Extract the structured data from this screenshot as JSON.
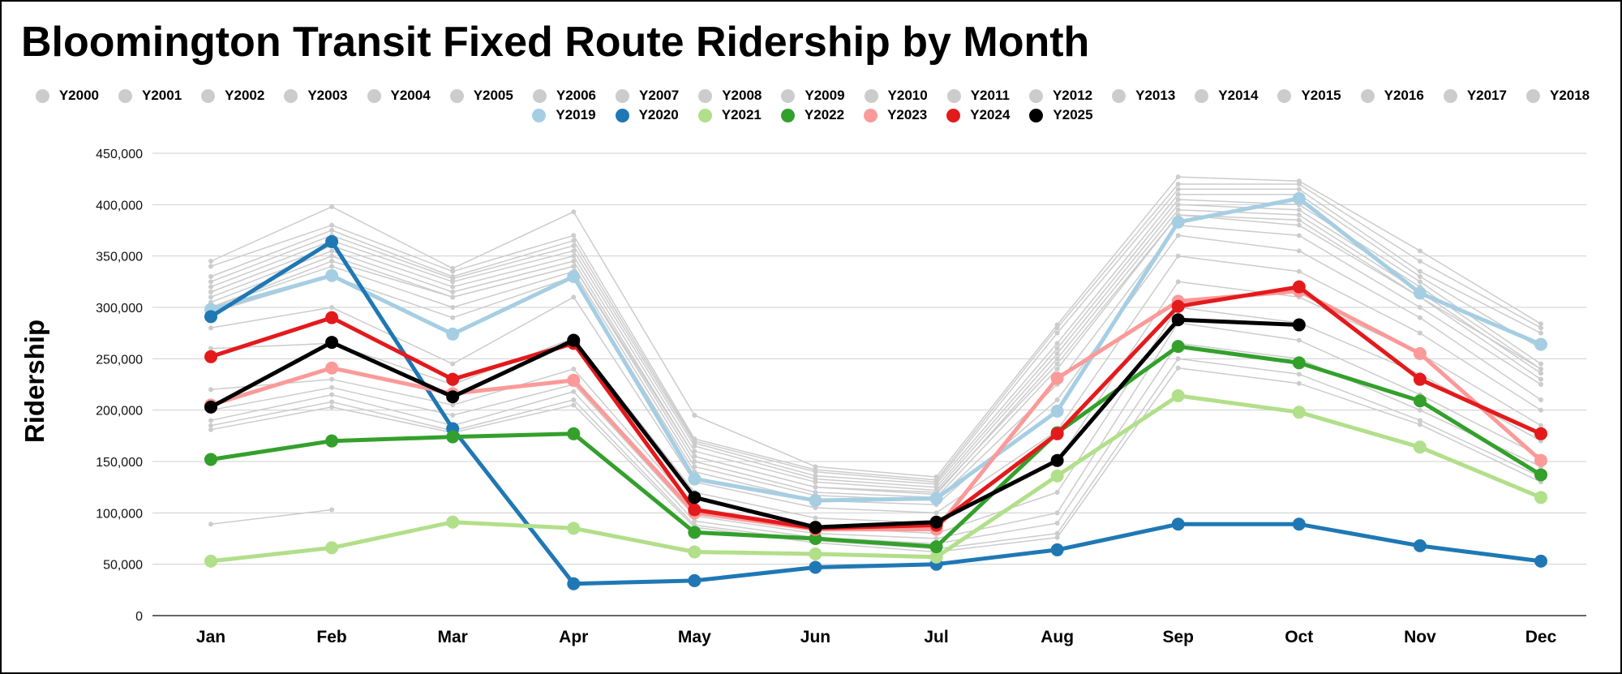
{
  "chart_data": {
    "type": "line",
    "title": "Bloomington Transit Fixed Route Ridership by Month",
    "xlabel": "",
    "ylabel": "Ridership",
    "categories": [
      "Jan",
      "Feb",
      "Mar",
      "Apr",
      "May",
      "Jun",
      "Jul",
      "Aug",
      "Sep",
      "Oct",
      "Nov",
      "Dec"
    ],
    "ylim": [
      0,
      450000
    ],
    "yticks": [
      0,
      50000,
      100000,
      150000,
      200000,
      250000,
      300000,
      350000,
      400000,
      450000
    ],
    "ytick_labels": [
      "0",
      "50,000",
      "100,000",
      "150,000",
      "200,000",
      "250,000",
      "300,000",
      "350,000",
      "400,000",
      "450,000"
    ],
    "grid": true,
    "legend_position": "top",
    "series": [
      {
        "name": "Y2000",
        "color": "#cccccc",
        "values": [
          89000,
          103000,
          null,
          null,
          null,
          null,
          null,
          null,
          null,
          null,
          null,
          null
        ]
      },
      {
        "name": "Y2001",
        "color": "#cccccc",
        "values": [
          181000,
          203000,
          178000,
          205000,
          86000,
          71000,
          62000,
          76000,
          241000,
          226000,
          186000,
          130000
        ]
      },
      {
        "name": "Y2002",
        "color": "#cccccc",
        "values": [
          185000,
          208000,
          180000,
          210000,
          88000,
          73000,
          65000,
          80000,
          250000,
          235000,
          190000,
          135000
        ]
      },
      {
        "name": "Y2003",
        "color": "#cccccc",
        "values": [
          190000,
          215000,
          185000,
          218000,
          92000,
          76000,
          70000,
          90000,
          265000,
          250000,
          200000,
          145000
        ]
      },
      {
        "name": "Y2004",
        "color": "#cccccc",
        "values": [
          200000,
          222000,
          195000,
          225000,
          97000,
          80000,
          75000,
          100000,
          285000,
          268000,
          215000,
          155000
        ]
      },
      {
        "name": "Y2005",
        "color": "#cccccc",
        "values": [
          220000,
          230000,
          205000,
          240000,
          105000,
          86000,
          80000,
          120000,
          300000,
          285000,
          235000,
          170000
        ]
      },
      {
        "name": "Y2006",
        "color": "#cccccc",
        "values": [
          260000,
          265000,
          225000,
          270000,
          120000,
          95000,
          90000,
          150000,
          325000,
          310000,
          255000,
          185000
        ]
      },
      {
        "name": "Y2007",
        "color": "#cccccc",
        "values": [
          280000,
          300000,
          245000,
          310000,
          130000,
          105000,
          100000,
          180000,
          350000,
          335000,
          275000,
          200000
        ]
      },
      {
        "name": "Y2008",
        "color": "#cccccc",
        "values": [
          295000,
          330000,
          290000,
          330000,
          140000,
          112000,
          108000,
          210000,
          370000,
          355000,
          290000,
          210000
        ]
      },
      {
        "name": "Y2009",
        "color": "#cccccc",
        "values": [
          300000,
          340000,
          300000,
          335000,
          145000,
          117000,
          112000,
          225000,
          380000,
          370000,
          300000,
          225000
        ]
      },
      {
        "name": "Y2010",
        "color": "#cccccc",
        "values": [
          305000,
          350000,
          310000,
          340000,
          150000,
          120000,
          115000,
          240000,
          390000,
          380000,
          310000,
          230000
        ]
      },
      {
        "name": "Y2011",
        "color": "#cccccc",
        "values": [
          310000,
          355000,
          315000,
          345000,
          155000,
          125000,
          118000,
          250000,
          395000,
          390000,
          315000,
          236000
        ]
      },
      {
        "name": "Y2012",
        "color": "#cccccc",
        "values": [
          315000,
          360000,
          320000,
          350000,
          160000,
          130000,
          122000,
          255000,
          400000,
          395000,
          320000,
          240000
        ]
      },
      {
        "name": "Y2013",
        "color": "#cccccc",
        "values": [
          320000,
          365000,
          325000,
          355000,
          165000,
          133000,
          125000,
          260000,
          405000,
          400000,
          325000,
          245000
        ]
      },
      {
        "name": "Y2014",
        "color": "#cccccc",
        "values": [
          325000,
          370000,
          328000,
          360000,
          168000,
          136000,
          128000,
          265000,
          410000,
          410000,
          330000,
          260000
        ]
      },
      {
        "name": "Y2015",
        "color": "#cccccc",
        "values": [
          330000,
          375000,
          330000,
          365000,
          170000,
          140000,
          130000,
          275000,
          415000,
          415000,
          335000,
          275000
        ]
      },
      {
        "name": "Y2016",
        "color": "#cccccc",
        "values": [
          340000,
          380000,
          335000,
          370000,
          172000,
          142000,
          132000,
          280000,
          420000,
          420000,
          345000,
          280000
        ]
      },
      {
        "name": "Y2017",
        "color": "#cccccc",
        "values": [
          345000,
          398000,
          338000,
          393000,
          195000,
          145000,
          135000,
          283000,
          427000,
          423000,
          355000,
          284000
        ]
      },
      {
        "name": "Y2018",
        "color": "#cccccc",
        "values": [
          300000,
          345000,
          310000,
          340000,
          155000,
          125000,
          120000,
          245000,
          390000,
          385000,
          310000,
          240000
        ]
      },
      {
        "name": "Y2019",
        "color": "#a6cee3",
        "values": [
          298000,
          331000,
          274000,
          330000,
          133000,
          112000,
          114000,
          199000,
          383000,
          406000,
          314000,
          264000
        ]
      },
      {
        "name": "Y2020",
        "color": "#1f78b4",
        "values": [
          291000,
          364000,
          182000,
          31000,
          34000,
          47000,
          50000,
          64000,
          89000,
          89000,
          68000,
          53000
        ]
      },
      {
        "name": "Y2021",
        "color": "#b2df8a",
        "values": [
          53000,
          66000,
          91000,
          85000,
          62000,
          60000,
          57000,
          136000,
          214000,
          198000,
          164000,
          115000
        ]
      },
      {
        "name": "Y2022",
        "color": "#33a02c",
        "values": [
          152000,
          170000,
          174000,
          177000,
          81000,
          75000,
          67000,
          178000,
          262000,
          246000,
          209000,
          137000
        ]
      },
      {
        "name": "Y2023",
        "color": "#fb9a99",
        "values": [
          205000,
          241000,
          216000,
          229000,
          100000,
          84000,
          84000,
          231000,
          306000,
          316000,
          255000,
          151000
        ]
      },
      {
        "name": "Y2024",
        "color": "#e31a1c",
        "values": [
          252000,
          290000,
          230000,
          265000,
          103000,
          85000,
          88000,
          177000,
          301000,
          320000,
          230000,
          177000
        ]
      },
      {
        "name": "Y2025",
        "color": "#000000",
        "values": [
          203000,
          266000,
          213000,
          268000,
          115000,
          86000,
          91000,
          151000,
          288000,
          283000,
          null,
          null
        ]
      }
    ]
  }
}
